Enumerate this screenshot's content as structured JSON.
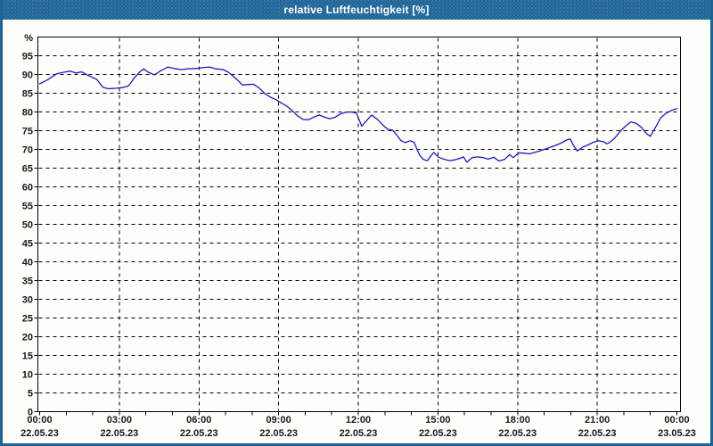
{
  "window": {
    "title": "relative Luftfeuchtigkeit [%]"
  },
  "colors": {
    "titlebar_bg": "#1c6398",
    "window_border": "#1c6398",
    "title_text": "#ffffff",
    "plot_bg": "#fdfdfa",
    "frame": "#000000",
    "grid": "#000000",
    "line": "#1a1ac6",
    "label_text": "#15181f"
  },
  "chart_data": {
    "type": "line",
    "title": "relative Luftfeuchtigkeit [%]",
    "unit_label": "%",
    "grid": "dashed",
    "legend": "none",
    "ylim": [
      0,
      100
    ],
    "y_tick_step": 5,
    "y_tick_labels": [
      "0",
      "5",
      "10",
      "15",
      "20",
      "25",
      "30",
      "35",
      "40",
      "45",
      "50",
      "55",
      "60",
      "65",
      "70",
      "75",
      "80",
      "85",
      "90",
      "95"
    ],
    "x_range_hours": [
      0,
      24
    ],
    "x_minor_tick_hours": 1,
    "x_major_ticks": [
      {
        "hour": 0,
        "time": "00:00",
        "date": "22.05.23"
      },
      {
        "hour": 3,
        "time": "03:00",
        "date": "22.05.23"
      },
      {
        "hour": 6,
        "time": "06:00",
        "date": "22.05.23"
      },
      {
        "hour": 9,
        "time": "09:00",
        "date": "22.05.23"
      },
      {
        "hour": 12,
        "time": "12:00",
        "date": "22.05.23"
      },
      {
        "hour": 15,
        "time": "15:00",
        "date": "22.05.23"
      },
      {
        "hour": 18,
        "time": "18:00",
        "date": "22.05.23"
      },
      {
        "hour": 21,
        "time": "21:00",
        "date": "22.05.23"
      },
      {
        "hour": 24,
        "time": "00:00",
        "date": "23.05.23"
      }
    ],
    "series": [
      {
        "name": "relative Luftfeuchtigkeit",
        "x_hours": [
          0,
          0.3,
          0.64,
          0.91,
          1.14,
          1.37,
          1.58,
          1.81,
          2.15,
          2.38,
          2.58,
          2.85,
          3.12,
          3.35,
          3.59,
          3.79,
          3.92,
          4.09,
          4.32,
          4.56,
          4.83,
          5.06,
          5.33,
          5.6,
          5.87,
          6.13,
          6.4,
          6.64,
          6.91,
          7.11,
          7.24,
          7.44,
          7.64,
          7.84,
          8.05,
          8.25,
          8.48,
          8.68,
          8.92,
          9.12,
          9.32,
          9.52,
          9.72,
          9.92,
          10.12,
          10.32,
          10.53,
          10.73,
          10.93,
          11.13,
          11.33,
          11.53,
          11.73,
          11.93,
          12.13,
          12.34,
          12.5,
          12.74,
          12.94,
          13.1,
          13.3,
          13.45,
          13.6,
          13.77,
          13.95,
          14.1,
          14.3,
          14.45,
          14.6,
          14.75,
          14.85,
          15.02,
          15.22,
          15.42,
          15.62,
          15.82,
          15.96,
          16.09,
          16.29,
          16.49,
          16.7,
          16.9,
          17.1,
          17.3,
          17.5,
          17.7,
          17.84,
          18.04,
          18.24,
          18.44,
          18.64,
          18.84,
          19.04,
          19.24,
          19.44,
          19.64,
          19.84,
          19.98,
          20.11,
          20.25,
          20.45,
          20.65,
          20.85,
          21.05,
          21.25,
          21.35,
          21.46,
          21.66,
          21.86,
          22.06,
          22.26,
          22.46,
          22.66,
          22.86,
          23.0,
          23.2,
          23.4,
          23.6,
          23.8,
          24.0
        ],
        "values": [
          87.5,
          88.6,
          90.2,
          90.6,
          90.9,
          90.4,
          90.7,
          89.8,
          88.7,
          86.6,
          86.2,
          86.3,
          86.5,
          87.0,
          89.3,
          90.8,
          91.5,
          90.6,
          89.9,
          91.0,
          92.0,
          91.6,
          91.3,
          91.5,
          91.6,
          91.8,
          92.0,
          91.5,
          91.3,
          90.6,
          89.8,
          88.6,
          87.2,
          87.3,
          87.4,
          86.5,
          84.9,
          84.0,
          83.2,
          82.3,
          81.5,
          80.3,
          78.9,
          78.0,
          77.9,
          78.6,
          79.2,
          78.6,
          78.2,
          78.6,
          79.5,
          79.9,
          80.0,
          79.7,
          76.2,
          77.9,
          79.2,
          77.9,
          76.4,
          75.4,
          75.1,
          73.8,
          72.4,
          71.8,
          72.3,
          71.9,
          68.6,
          67.3,
          67.0,
          68.4,
          69.2,
          67.9,
          67.4,
          67.0,
          67.2,
          67.6,
          68.0,
          66.6,
          67.8,
          68.0,
          67.8,
          67.4,
          67.9,
          66.9,
          67.3,
          68.6,
          67.8,
          69.1,
          69.0,
          68.8,
          69.2,
          69.6,
          70.1,
          70.6,
          71.1,
          71.7,
          72.5,
          72.8,
          71.0,
          69.6,
          70.6,
          71.2,
          71.9,
          72.3,
          72.0,
          71.5,
          71.8,
          73.0,
          74.8,
          76.2,
          77.3,
          77.0,
          75.9,
          74.2,
          73.5,
          76.0,
          78.5,
          79.7,
          80.4,
          80.9
        ]
      }
    ]
  }
}
